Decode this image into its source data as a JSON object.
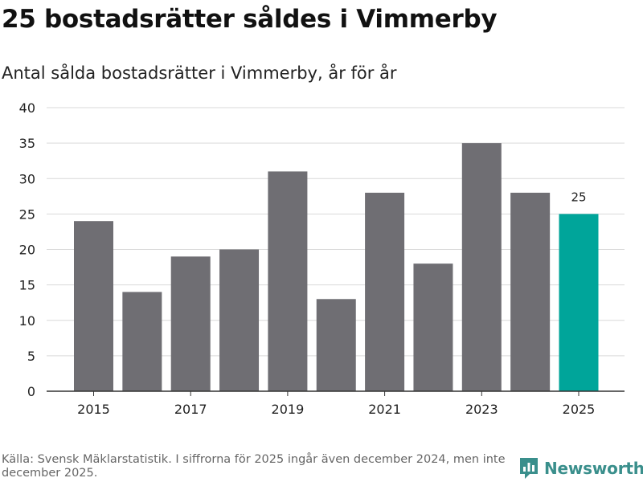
{
  "title": "25 bostadsrätter såldes i Vimmerby",
  "subtitle": "Antal sålda bostadsrätter i Vimmerby, år för år",
  "source": "Källa: Svensk Mäklarstatistik. I siffrorna för 2025 ingår även december 2024, men inte december 2025.",
  "brand": "Newsworthy",
  "colors": {
    "bar": "#6f6e73",
    "highlight": "#00a59a",
    "grid": "#d9d9d9",
    "axis": "#333333",
    "brand": "#3a8f8c"
  },
  "chart_data": {
    "type": "bar",
    "title": "Antal sålda bostadsrätter i Vimmerby, år för år",
    "categories": [
      "2015",
      "2016",
      "2017",
      "2018",
      "2019",
      "2020",
      "2021",
      "2022",
      "2023",
      "2024",
      "2025"
    ],
    "values": [
      24,
      14,
      19,
      20,
      31,
      13,
      28,
      18,
      35,
      28,
      25
    ],
    "xtick_labels": [
      "2015",
      "2017",
      "2019",
      "2021",
      "2023",
      "2025"
    ],
    "yticks": [
      0,
      5,
      10,
      15,
      20,
      25,
      30,
      35,
      40
    ],
    "ylim": [
      0,
      40
    ],
    "highlight_category": "2025",
    "data_labels": [
      {
        "category": "2025",
        "text": "25"
      }
    ],
    "xlabel": "",
    "ylabel": "",
    "grid": true
  }
}
